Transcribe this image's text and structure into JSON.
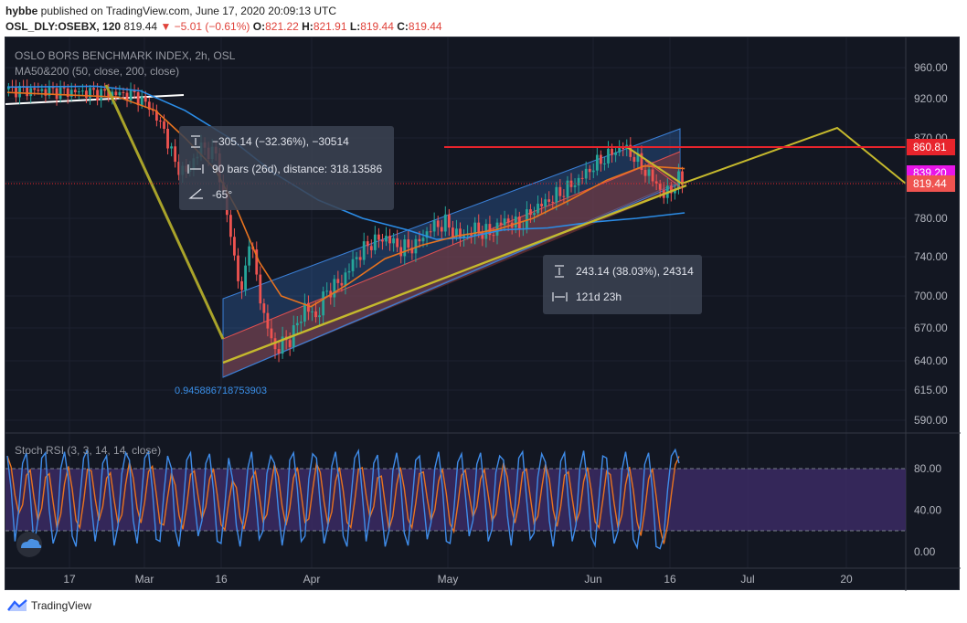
{
  "header": {
    "publisher": "hybbe",
    "published_text": " published on TradingView.com, June 17, 2020 20:09:13 UTC",
    "symbol": "OSL_DLY:OSEBX, 120",
    "last": "819.44",
    "change": "−5.01 (−0.61%)",
    "o_label": "O:",
    "o_val": "821.22",
    "h_label": "H:",
    "h_val": "821.91",
    "l_label": "L:",
    "l_val": "819.44",
    "c_label": "C:",
    "c_val": "819.44"
  },
  "legend": {
    "title": "OSLO BORS BENCHMARK INDEX, 2h, OSL",
    "ma": "MA50&200 (50, close, 200, close)",
    "stoch": "Stoch RSI (3, 3, 14, 14, close)"
  },
  "measure1": {
    "line1": "−305.14 (−32.36%), −30514",
    "line2": "90 bars (26d), distance: 318.13586",
    "line3": "-65°"
  },
  "measure2": {
    "line1": "243.14 (38.03%), 24314",
    "line2": "121d 23h"
  },
  "fib_label": "0.9458867187539 03",
  "fib_text": "0.945886718753903",
  "price_labels": {
    "resistance": "860.81",
    "ma": "839.20",
    "last": "819.44"
  },
  "chart_data": {
    "type": "candlestick",
    "title": "OSLO BORS BENCHMARK INDEX, 2h, OSL",
    "y_ticks": [
      960,
      920,
      870,
      820,
      780,
      740,
      700,
      670,
      640,
      615,
      590
    ],
    "x_ticks": [
      "17",
      "Mar",
      "16",
      "Apr",
      "May",
      "Jun",
      "16",
      "Jul",
      "20"
    ],
    "osc_ticks": [
      "80.00",
      "40.00",
      "0.00"
    ],
    "key_levels": {
      "resistance": 860.81,
      "ma": 839.2,
      "last": 819.44
    },
    "price_path": [
      [
        0,
        932
      ],
      [
        10,
        930
      ],
      [
        22,
        928
      ],
      [
        34,
        925
      ],
      [
        38,
        910
      ],
      [
        42,
        880
      ],
      [
        45,
        840
      ],
      [
        48,
        830
      ],
      [
        52,
        860
      ],
      [
        56,
        850
      ],
      [
        58,
        805
      ],
      [
        61,
        740
      ],
      [
        63,
        700
      ],
      [
        65,
        760
      ],
      [
        67,
        720
      ],
      [
        69,
        680
      ],
      [
        72,
        650
      ],
      [
        74,
        655
      ],
      [
        77,
        665
      ],
      [
        80,
        690
      ],
      [
        83,
        680
      ],
      [
        86,
        705
      ],
      [
        90,
        715
      ],
      [
        94,
        740
      ],
      [
        98,
        755
      ],
      [
        102,
        760
      ],
      [
        106,
        748
      ],
      [
        110,
        752
      ],
      [
        114,
        770
      ],
      [
        118,
        775
      ],
      [
        122,
        760
      ],
      [
        126,
        768
      ],
      [
        130,
        764
      ],
      [
        134,
        778
      ],
      [
        138,
        772
      ],
      [
        142,
        790
      ],
      [
        146,
        800
      ],
      [
        150,
        810
      ],
      [
        154,
        822
      ],
      [
        158,
        838
      ],
      [
        162,
        850
      ],
      [
        166,
        860
      ],
      [
        169,
        848
      ],
      [
        172,
        832
      ],
      [
        175,
        818
      ],
      [
        177,
        805
      ],
      [
        179,
        812
      ],
      [
        181,
        822
      ],
      [
        183,
        819
      ]
    ],
    "ma50": [
      [
        0,
        928
      ],
      [
        30,
        922
      ],
      [
        40,
        905
      ],
      [
        48,
        870
      ],
      [
        56,
        835
      ],
      [
        62,
        790
      ],
      [
        68,
        735
      ],
      [
        74,
        700
      ],
      [
        82,
        690
      ],
      [
        92,
        712
      ],
      [
        102,
        738
      ],
      [
        112,
        752
      ],
      [
        122,
        762
      ],
      [
        132,
        768
      ],
      [
        142,
        780
      ],
      [
        152,
        800
      ],
      [
        162,
        822
      ],
      [
        172,
        838
      ],
      [
        183,
        835
      ]
    ],
    "ma200": [
      [
        0,
        935
      ],
      [
        24,
        936
      ],
      [
        36,
        930
      ],
      [
        48,
        905
      ],
      [
        60,
        870
      ],
      [
        72,
        830
      ],
      [
        84,
        800
      ],
      [
        96,
        780
      ],
      [
        108,
        768
      ],
      [
        116,
        758
      ],
      [
        124,
        760
      ],
      [
        134,
        768
      ],
      [
        146,
        770
      ],
      [
        158,
        776
      ],
      [
        170,
        780
      ],
      [
        183,
        786
      ]
    ],
    "stoch_k": [
      92,
      60,
      10,
      40,
      85,
      95,
      55,
      5,
      30,
      90,
      95,
      40,
      8,
      20,
      80,
      96,
      70,
      15,
      5,
      50,
      90,
      98,
      45,
      10,
      35,
      85,
      92,
      50,
      6,
      25,
      75,
      95,
      88,
      30,
      8,
      45,
      90,
      96,
      60,
      12,
      10,
      55,
      92,
      80,
      20,
      5,
      40,
      88,
      95,
      50,
      15,
      30,
      85,
      94,
      60,
      10,
      8,
      45,
      90,
      70,
      25,
      5,
      35,
      80,
      96,
      55,
      12,
      20,
      75,
      92,
      85,
      40,
      6,
      30,
      88,
      95,
      60,
      10,
      15,
      70,
      94,
      90,
      45,
      8,
      25,
      82,
      96,
      65,
      15,
      5,
      50,
      90,
      97,
      55,
      10,
      35,
      85,
      93,
      40,
      5,
      20,
      78,
      95,
      70,
      18,
      6,
      45,
      88,
      92,
      50,
      12,
      28,
      80,
      96,
      62,
      10,
      8,
      40,
      86,
      94,
      55,
      15,
      30,
      84,
      95,
      58,
      10,
      22,
      76,
      92,
      88,
      35,
      6,
      42,
      90,
      96,
      52,
      12,
      18,
      72,
      94,
      86,
      30,
      5,
      38,
      87,
      95,
      48,
      10,
      26,
      80,
      97,
      66,
      14,
      6,
      50,
      92,
      90,
      40,
      8,
      20,
      78,
      96,
      70,
      12,
      4,
      30,
      84,
      95,
      60,
      5,
      3,
      15,
      60,
      92,
      98,
      85
    ]
  },
  "brand": "TradingView",
  "colors": {
    "bg": "#131722",
    "up": "#26a69a",
    "down": "#ef5350",
    "ma50": "#e8731f",
    "ma200": "#2b8ce6",
    "trend": "#c5b92d",
    "resistance": "#e8242c",
    "channel_blue": "#3a7fd6",
    "stoch_k": "#3f8ce9",
    "stoch_d": "#e8731f",
    "band": "#3b2a63"
  },
  "icons": {
    "vertical_measure": "vertical-measure-icon",
    "horizontal_measure": "horizontal-measure-icon",
    "angle": "angle-icon",
    "cloud": "cloud-icon",
    "brand": "tradingview-logo-icon"
  }
}
